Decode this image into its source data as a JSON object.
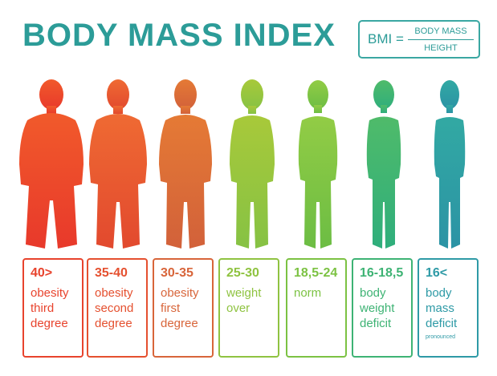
{
  "title": "BODY MASS INDEX",
  "formula": {
    "lhs": "BMI =",
    "numerator": "BODY MASS",
    "denominator": "HEIGHT"
  },
  "categories": [
    {
      "range": "40>",
      "lines": [
        "obesity",
        "third",
        "degree"
      ],
      "color": "#e8432d"
    },
    {
      "range": "35-40",
      "lines": [
        "obesity",
        "second",
        "degree"
      ],
      "color": "#e5502f"
    },
    {
      "range": "30-35",
      "lines": [
        "obesity",
        "first",
        "degree"
      ],
      "color": "#d8653a"
    },
    {
      "range": "25-30",
      "lines": [
        "weight",
        "over"
      ],
      "color": "#8fc341"
    },
    {
      "range": "18,5-24",
      "lines": [
        "norm"
      ],
      "color": "#7cc243"
    },
    {
      "range": "16-18,5",
      "lines": [
        "body",
        "weight",
        "deficit"
      ],
      "color": "#3eb374"
    },
    {
      "range": "16<",
      "lines": [
        "body",
        "mass",
        "deficit"
      ],
      "note": "pronounced",
      "color": "#2e9aa6"
    }
  ]
}
